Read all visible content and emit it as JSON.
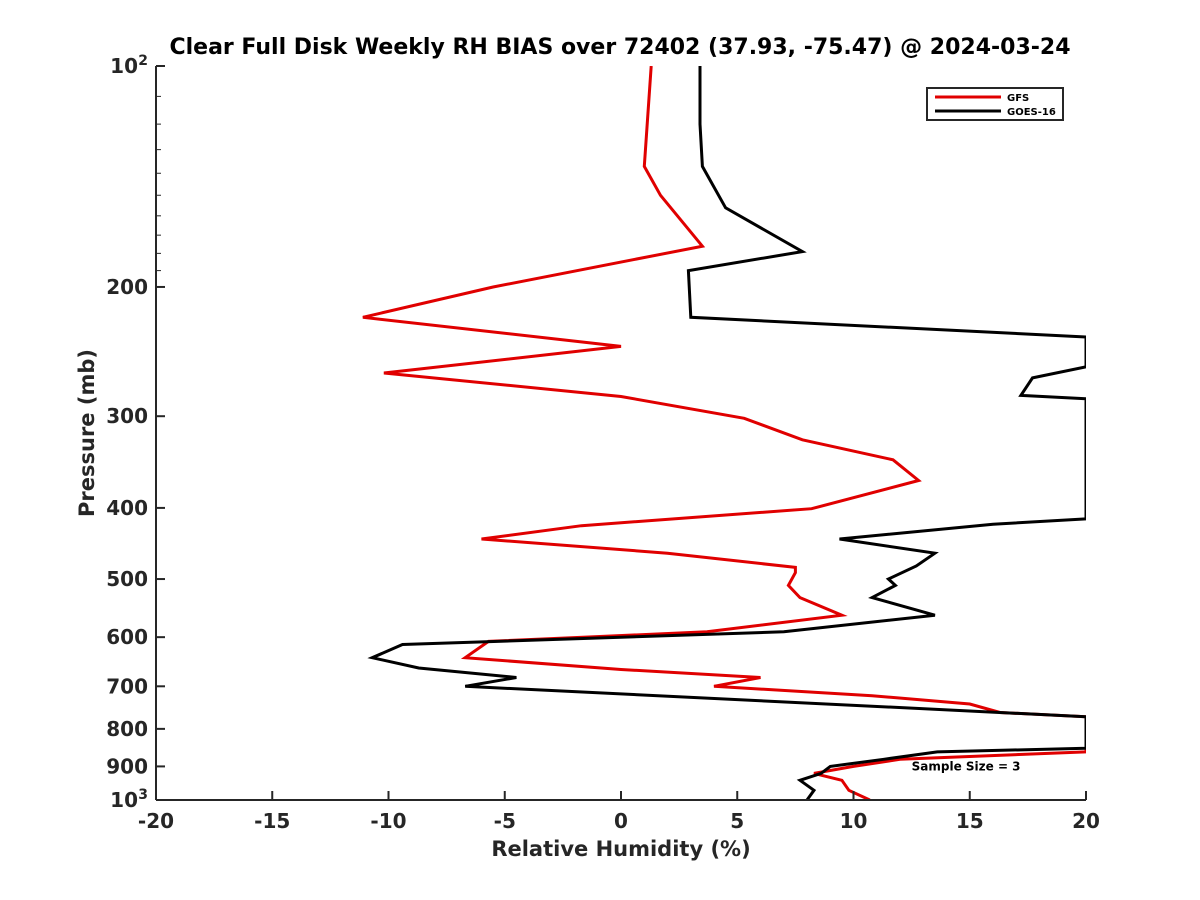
{
  "chart_data": {
    "type": "line",
    "title": "Clear Full Disk Weekly RH BIAS over 72402 (37.93, -75.47) @ 2024-03-24",
    "xlabel": "Relative Humidity (%)",
    "ylabel": "Pressure (mb)",
    "xlim": [
      -20,
      20
    ],
    "ylim": [
      100,
      1000
    ],
    "yscale": "log",
    "y_reversed": true,
    "xticks": [
      -20,
      -15,
      -10,
      -5,
      0,
      5,
      10,
      15,
      20
    ],
    "yticks": [
      {
        "value": 100,
        "label": "10",
        "sup": "2"
      },
      {
        "value": 200,
        "label": "200",
        "sup": ""
      },
      {
        "value": 300,
        "label": "300",
        "sup": ""
      },
      {
        "value": 400,
        "label": "400",
        "sup": ""
      },
      {
        "value": 500,
        "label": "500",
        "sup": ""
      },
      {
        "value": 600,
        "label": "600",
        "sup": ""
      },
      {
        "value": 700,
        "label": "700",
        "sup": ""
      },
      {
        "value": 800,
        "label": "800",
        "sup": ""
      },
      {
        "value": 900,
        "label": "900",
        "sup": ""
      },
      {
        "value": 1000,
        "label": "10",
        "sup": "3"
      }
    ],
    "grid": false,
    "legend_position": "top-right",
    "series": [
      {
        "name": "GFS",
        "color": "#e00000",
        "points": [
          [
            1.3,
            100
          ],
          [
            1.0,
            137
          ],
          [
            1.7,
            150
          ],
          [
            3.5,
            176
          ],
          [
            -5.5,
            200
          ],
          [
            -11.1,
            220
          ],
          [
            0.0,
            241
          ],
          [
            -10.2,
            262
          ],
          [
            0.0,
            282
          ],
          [
            5.3,
            302
          ],
          [
            7.8,
            323
          ],
          [
            11.7,
            344
          ],
          [
            12.8,
            367
          ],
          [
            8.2,
            401
          ],
          [
            -1.7,
            423
          ],
          [
            -6.0,
            441
          ],
          [
            2.0,
            461
          ],
          [
            7.5,
            482
          ],
          [
            7.5,
            490
          ],
          [
            7.2,
            510
          ],
          [
            7.7,
            530
          ],
          [
            9.5,
            560
          ],
          [
            3.7,
            590
          ],
          [
            -5.7,
            608
          ],
          [
            -6.7,
            640
          ],
          [
            0.0,
            664
          ],
          [
            6.0,
            681
          ],
          [
            4.0,
            700
          ],
          [
            10.8,
            721
          ],
          [
            15.0,
            740
          ],
          [
            16.3,
            760
          ],
          [
            20.0,
            770
          ],
          [
            20.0,
            860
          ],
          [
            12.0,
            880
          ],
          [
            10.0,
            900
          ],
          [
            8.3,
            920
          ],
          [
            9.5,
            940
          ],
          [
            9.8,
            970
          ],
          [
            10.7,
            1000
          ]
        ]
      },
      {
        "name": "GOES-16",
        "color": "#000000",
        "points": [
          [
            3.4,
            100
          ],
          [
            3.4,
            120
          ],
          [
            3.5,
            137
          ],
          [
            4.5,
            156
          ],
          [
            7.8,
            179
          ],
          [
            2.9,
            190
          ],
          [
            3.0,
            220
          ],
          [
            20.0,
            234
          ],
          [
            20.0,
            257
          ],
          [
            17.7,
            266
          ],
          [
            17.2,
            281
          ],
          [
            20.0,
            284
          ],
          [
            20.0,
            414
          ],
          [
            16.0,
            421
          ],
          [
            9.4,
            441
          ],
          [
            13.5,
            461
          ],
          [
            12.7,
            480
          ],
          [
            11.5,
            500
          ],
          [
            11.8,
            510
          ],
          [
            10.8,
            530
          ],
          [
            13.5,
            560
          ],
          [
            7.0,
            590
          ],
          [
            -9.4,
            614
          ],
          [
            -10.7,
            640
          ],
          [
            -8.7,
            661
          ],
          [
            -4.5,
            681
          ],
          [
            -6.7,
            700
          ],
          [
            20.0,
            770
          ],
          [
            20.0,
            850
          ],
          [
            13.6,
            860
          ],
          [
            11.3,
            880
          ],
          [
            9.0,
            900
          ],
          [
            8.6,
            920
          ],
          [
            7.7,
            940
          ],
          [
            8.3,
            970
          ],
          [
            8.0,
            1000
          ]
        ]
      }
    ],
    "annotations": [
      {
        "text": "Sample Size = 3",
        "x": 12.5,
        "y": 900
      }
    ]
  }
}
